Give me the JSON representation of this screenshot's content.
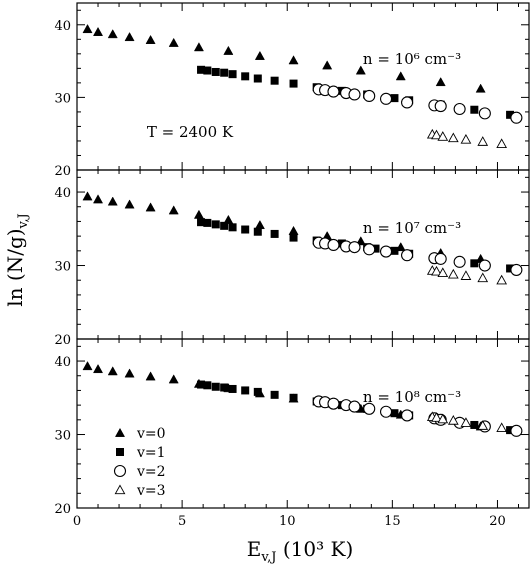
{
  "chart_data": [
    {
      "type": "scatter",
      "panel": "top",
      "annotations": {
        "density": "n = 10⁶ cm⁻³",
        "temperature": "T = 2400 K"
      },
      "xlim": [
        0,
        21.5
      ],
      "ylim": [
        20,
        43
      ],
      "xticks": [
        0,
        5,
        10,
        15,
        20
      ],
      "xtick_labels": [
        "",
        "",
        "",
        "",
        ""
      ],
      "yticks": [
        20,
        30,
        40
      ],
      "ytick_labels": [
        "20",
        "30",
        "40"
      ],
      "series": [
        {
          "marker": "triangle-filled",
          "points": [
            [
              0.5,
              39.4
            ],
            [
              1.0,
              39.0
            ],
            [
              1.7,
              38.7
            ],
            [
              2.5,
              38.3
            ],
            [
              3.5,
              37.9
            ],
            [
              4.6,
              37.5
            ],
            [
              5.8,
              36.9
            ],
            [
              7.2,
              36.4
            ],
            [
              8.7,
              35.7
            ],
            [
              10.3,
              35.1
            ],
            [
              11.9,
              34.4
            ],
            [
              13.5,
              33.7
            ],
            [
              15.4,
              32.9
            ],
            [
              17.3,
              32.1
            ],
            [
              19.2,
              31.2
            ]
          ]
        },
        {
          "marker": "square-filled",
          "points": [
            [
              5.9,
              33.8
            ],
            [
              6.2,
              33.7
            ],
            [
              6.6,
              33.5
            ],
            [
              7.0,
              33.4
            ],
            [
              7.4,
              33.2
            ],
            [
              8.0,
              32.9
            ],
            [
              8.6,
              32.6
            ],
            [
              9.4,
              32.3
            ],
            [
              10.3,
              31.9
            ],
            [
              11.4,
              31.4
            ],
            [
              12.6,
              30.9
            ],
            [
              13.8,
              30.4
            ],
            [
              15.1,
              29.9
            ],
            [
              15.8,
              29.6
            ],
            [
              17.3,
              29.0
            ],
            [
              18.9,
              28.3
            ],
            [
              20.6,
              27.6
            ]
          ]
        },
        {
          "marker": "circle-open",
          "points": [
            [
              11.5,
              31.1
            ],
            [
              11.8,
              31.0
            ],
            [
              12.2,
              30.8
            ],
            [
              12.8,
              30.6
            ],
            [
              13.2,
              30.4
            ],
            [
              13.9,
              30.2
            ],
            [
              14.7,
              29.8
            ],
            [
              15.7,
              29.3
            ],
            [
              17.0,
              28.9
            ],
            [
              17.3,
              28.8
            ],
            [
              18.2,
              28.4
            ],
            [
              19.4,
              27.8
            ],
            [
              20.9,
              27.2
            ]
          ]
        },
        {
          "marker": "triangle-open",
          "points": [
            [
              16.9,
              24.9
            ],
            [
              17.1,
              24.8
            ],
            [
              17.4,
              24.6
            ],
            [
              17.9,
              24.4
            ],
            [
              18.5,
              24.2
            ],
            [
              19.3,
              23.9
            ],
            [
              20.2,
              23.6
            ]
          ]
        }
      ]
    },
    {
      "type": "scatter",
      "panel": "middle",
      "annotations": {
        "density": "n = 10⁷ cm⁻³"
      },
      "xlim": [
        0,
        21.5
      ],
      "ylim": [
        20,
        43
      ],
      "xticks": [
        0,
        5,
        10,
        15,
        20
      ],
      "xtick_labels": [
        "",
        "",
        "",
        "",
        ""
      ],
      "yticks": [
        20,
        30,
        40
      ],
      "ytick_labels": [
        "20",
        "30",
        "40"
      ],
      "series": [
        {
          "marker": "triangle-filled",
          "points": [
            [
              0.5,
              39.4
            ],
            [
              1.0,
              39.0
            ],
            [
              1.7,
              38.7
            ],
            [
              2.5,
              38.3
            ],
            [
              3.5,
              37.9
            ],
            [
              4.6,
              37.5
            ],
            [
              5.8,
              36.9
            ],
            [
              7.2,
              36.2
            ],
            [
              8.7,
              35.5
            ],
            [
              10.3,
              34.7
            ],
            [
              11.9,
              34.0
            ],
            [
              13.5,
              33.3
            ],
            [
              15.4,
              32.5
            ],
            [
              17.3,
              31.7
            ],
            [
              19.2,
              30.9
            ]
          ]
        },
        {
          "marker": "square-filled",
          "points": [
            [
              5.9,
              35.9
            ],
            [
              6.2,
              35.8
            ],
            [
              6.6,
              35.6
            ],
            [
              7.0,
              35.4
            ],
            [
              7.4,
              35.2
            ],
            [
              8.0,
              34.9
            ],
            [
              8.6,
              34.6
            ],
            [
              9.4,
              34.3
            ],
            [
              10.3,
              33.8
            ],
            [
              11.4,
              33.4
            ],
            [
              12.6,
              33.0
            ],
            [
              13.8,
              32.5
            ],
            [
              14.2,
              32.3
            ],
            [
              15.1,
              32.0
            ],
            [
              15.8,
              31.6
            ],
            [
              17.3,
              30.9
            ],
            [
              18.9,
              30.3
            ],
            [
              20.6,
              29.6
            ]
          ]
        },
        {
          "marker": "circle-open",
          "points": [
            [
              11.5,
              33.1
            ],
            [
              11.8,
              33.0
            ],
            [
              12.2,
              32.8
            ],
            [
              12.8,
              32.6
            ],
            [
              13.2,
              32.5
            ],
            [
              13.9,
              32.2
            ],
            [
              14.7,
              31.9
            ],
            [
              15.7,
              31.4
            ],
            [
              17.0,
              31.0
            ],
            [
              17.3,
              30.9
            ],
            [
              18.2,
              30.5
            ],
            [
              19.4,
              30.0
            ],
            [
              20.9,
              29.4
            ]
          ]
        },
        {
          "marker": "triangle-open",
          "points": [
            [
              16.9,
              29.3
            ],
            [
              17.1,
              29.2
            ],
            [
              17.4,
              29.0
            ],
            [
              17.9,
              28.8
            ],
            [
              18.5,
              28.6
            ],
            [
              19.3,
              28.3
            ],
            [
              20.2,
              28.0
            ]
          ]
        }
      ]
    },
    {
      "type": "scatter",
      "panel": "bottom",
      "annotations": {
        "density": "n = 10⁸ cm⁻³"
      },
      "xlim": [
        0,
        21.5
      ],
      "ylim": [
        20,
        43
      ],
      "xticks": [
        0,
        5,
        10,
        15,
        20
      ],
      "xtick_labels": [
        "0",
        "5",
        "10",
        "15",
        "20"
      ],
      "yticks": [
        20,
        30,
        40
      ],
      "ytick_labels": [
        "20",
        "30",
        "40"
      ],
      "series": [
        {
          "marker": "triangle-filled",
          "points": [
            [
              0.5,
              39.3
            ],
            [
              1.0,
              38.9
            ],
            [
              1.7,
              38.6
            ],
            [
              2.5,
              38.3
            ],
            [
              3.5,
              37.9
            ],
            [
              4.6,
              37.5
            ],
            [
              5.8,
              36.9
            ],
            [
              7.2,
              36.3
            ],
            [
              8.7,
              35.6
            ],
            [
              10.3,
              34.9
            ],
            [
              11.9,
              34.2
            ],
            [
              13.5,
              33.5
            ],
            [
              15.4,
              32.7
            ],
            [
              17.3,
              31.9
            ],
            [
              19.2,
              31.1
            ]
          ]
        },
        {
          "marker": "square-filled",
          "points": [
            [
              5.9,
              36.8
            ],
            [
              6.2,
              36.7
            ],
            [
              6.6,
              36.5
            ],
            [
              7.0,
              36.4
            ],
            [
              7.4,
              36.2
            ],
            [
              8.0,
              36.0
            ],
            [
              8.6,
              35.8
            ],
            [
              9.4,
              35.4
            ],
            [
              10.3,
              35.0
            ],
            [
              11.4,
              34.5
            ],
            [
              12.6,
              34.0
            ],
            [
              13.8,
              33.5
            ],
            [
              15.1,
              32.9
            ],
            [
              15.8,
              32.6
            ],
            [
              17.3,
              31.9
            ],
            [
              18.9,
              31.3
            ],
            [
              20.6,
              30.6
            ]
          ]
        },
        {
          "marker": "circle-open",
          "points": [
            [
              11.5,
              34.5
            ],
            [
              11.8,
              34.4
            ],
            [
              12.2,
              34.2
            ],
            [
              12.8,
              34.0
            ],
            [
              13.2,
              33.8
            ],
            [
              13.9,
              33.5
            ],
            [
              14.7,
              33.1
            ],
            [
              15.7,
              32.6
            ],
            [
              17.0,
              32.2
            ],
            [
              17.3,
              32.0
            ],
            [
              18.2,
              31.6
            ],
            [
              19.4,
              31.1
            ],
            [
              20.9,
              30.5
            ]
          ]
        },
        {
          "marker": "triangle-open",
          "points": [
            [
              16.9,
              32.4
            ],
            [
              17.1,
              32.3
            ],
            [
              17.4,
              32.1
            ],
            [
              17.9,
              31.9
            ],
            [
              18.5,
              31.6
            ],
            [
              19.3,
              31.2
            ],
            [
              20.2,
              30.9
            ]
          ]
        }
      ],
      "legend": [
        {
          "marker": "triangle-filled",
          "label": "v=0"
        },
        {
          "marker": "square-filled",
          "label": "v=1"
        },
        {
          "marker": "circle-open",
          "label": "v=2"
        },
        {
          "marker": "triangle-open",
          "label": "v=3"
        }
      ]
    }
  ],
  "axes": {
    "ylabel": "ln (N/g)",
    "ylabel_sub": "v,J",
    "xlabel": "E",
    "xlabel_sub": "v,J",
    "xlabel_unit": " (10³ K)"
  }
}
